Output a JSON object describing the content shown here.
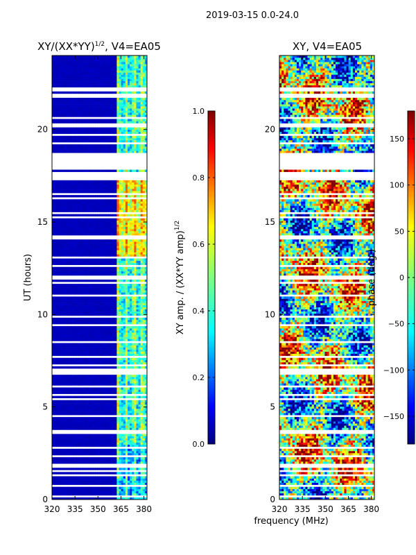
{
  "figure": {
    "suptitle": "2019-03-15 0.0-24.0",
    "shared_xlabel": "frequency (MHz)"
  },
  "chart_data": [
    {
      "type": "heatmap",
      "title_main": "XY/(XX*YY)",
      "title_exp": "1/2",
      "title_suffix": ", V4=EA05",
      "ylabel": "UT (hours)",
      "xlim": [
        320,
        382
      ],
      "ylim": [
        0,
        24
      ],
      "xticks": [
        320,
        335,
        350,
        365,
        380
      ],
      "yticks": [
        0,
        5,
        10,
        15,
        20
      ],
      "colorbar": {
        "label_main": "XY amp. / (XX*YY amp)",
        "label_exp": "1/2",
        "range": [
          0.0,
          1.0
        ],
        "ticks": [
          "0.0",
          "0.2",
          "0.4",
          "0.6",
          "0.8",
          "1.0"
        ],
        "tick_values": [
          0.0,
          0.2,
          0.4,
          0.6,
          0.8,
          1.0
        ],
        "colormap": "jet"
      }
    },
    {
      "type": "heatmap",
      "title": "XY, V4=EA05",
      "ylabel": "",
      "xlim": [
        320,
        382
      ],
      "ylim": [
        0,
        24
      ],
      "xticks": [
        320,
        335,
        350,
        365,
        380
      ],
      "yticks": [
        0,
        5,
        10,
        15,
        20
      ],
      "colorbar": {
        "label": "phase (deg.)",
        "range": [
          -180,
          180
        ],
        "ticks": [
          "−150",
          "−100",
          "−50",
          "0",
          "50",
          "100",
          "150"
        ],
        "tick_values": [
          -150,
          -100,
          -50,
          0,
          50,
          100,
          150
        ],
        "colormap": "jet"
      }
    }
  ],
  "colors": {
    "jet": [
      "#00007f",
      "#0000ff",
      "#007fff",
      "#00ffff",
      "#7fff7f",
      "#ffff00",
      "#ff7f00",
      "#ff0000",
      "#7f0000"
    ],
    "background": "#ffffff"
  }
}
